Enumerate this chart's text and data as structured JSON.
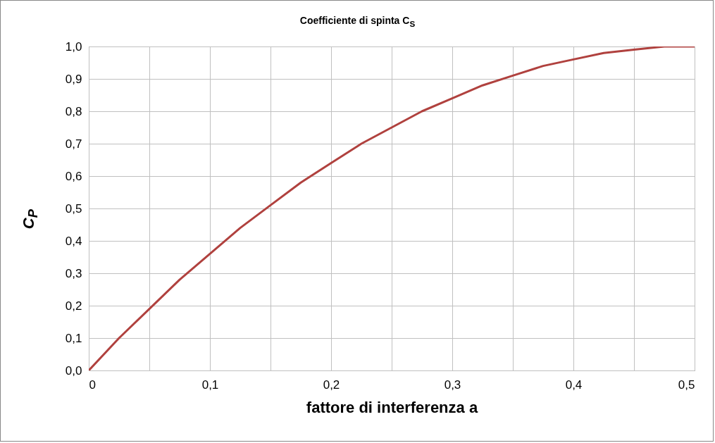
{
  "chart_data": {
    "type": "line",
    "title": "Coefficiente di spinta C$_{S}$",
    "xlabel": "fattore di interferenza   a",
    "ylabel": "C$_{P}$",
    "x": [
      0,
      0.025,
      0.05,
      0.075,
      0.1,
      0.125,
      0.15,
      0.175,
      0.2,
      0.225,
      0.25,
      0.275,
      0.3,
      0.325,
      0.35,
      0.375,
      0.4,
      0.425,
      0.45,
      0.475,
      0.5
    ],
    "series": [
      {
        "color": "#b0413e",
        "values": [
          0,
          0.1,
          0.19,
          0.28,
          0.36,
          0.44,
          0.51,
          0.58,
          0.64,
          0.7,
          0.75,
          0.8,
          0.84,
          0.88,
          0.91,
          0.94,
          0.96,
          0.98,
          0.99,
          1.0,
          1.0
        ]
      }
    ],
    "xlim": [
      0,
      0.5
    ],
    "ylim": [
      0,
      1
    ],
    "xticks": [
      {
        "value": 0,
        "label": "0"
      },
      {
        "value": 0.05,
        "label": null
      },
      {
        "value": 0.1,
        "label": "0,1"
      },
      {
        "value": 0.15,
        "label": null
      },
      {
        "value": 0.2,
        "label": "0,2"
      },
      {
        "value": 0.25,
        "label": null
      },
      {
        "value": 0.3,
        "label": "0,3"
      },
      {
        "value": 0.35,
        "label": null
      },
      {
        "value": 0.4,
        "label": "0,4"
      },
      {
        "value": 0.45,
        "label": null
      },
      {
        "value": 0.5,
        "label": "0,5"
      }
    ],
    "yticks": [
      {
        "value": 0,
        "label": "0,0"
      },
      {
        "value": 0.1,
        "label": "0,1"
      },
      {
        "value": 0.2,
        "label": "0,2"
      },
      {
        "value": 0.3,
        "label": "0,3"
      },
      {
        "value": 0.4,
        "label": "0,4"
      },
      {
        "value": 0.5,
        "label": "0,5"
      },
      {
        "value": 0.6,
        "label": "0,6"
      },
      {
        "value": 0.7,
        "label": "0,7"
      },
      {
        "value": 0.8,
        "label": "0,8"
      },
      {
        "value": 0.9,
        "label": "0,9"
      },
      {
        "value": 1,
        "label": "1,0"
      }
    ],
    "grid": true,
    "marker": "none",
    "line_style": "solid"
  }
}
